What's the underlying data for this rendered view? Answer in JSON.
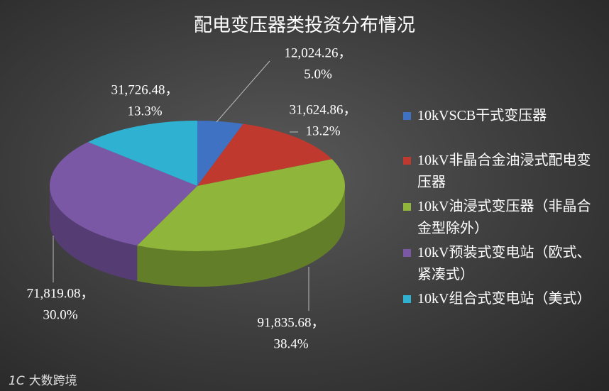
{
  "chart_data": {
    "type": "pie3d",
    "title": "配电变压器类投资分布情况",
    "categories": [
      "10kVSCB干式变压器",
      "10kV非晶合金油浸式配电变压器",
      "10kV油浸式变压器（非晶合金型除外）",
      "10kV预装式变电站（欧式、紧凑式）",
      "10kV组合式变电站（美式）"
    ],
    "values": [
      12024.26,
      31624.86,
      91835.68,
      71819.08,
      31726.48
    ],
    "value_labels": [
      "12,024.26，",
      "31,624.86，",
      "91,835.68，",
      "71,819.08，",
      "31,726.48，"
    ],
    "percents": [
      5.0,
      13.2,
      38.4,
      30.0,
      13.3
    ],
    "percent_labels": [
      "5.0%",
      "13.2%",
      "38.4%",
      "30.0%",
      "13.3%"
    ],
    "colors": [
      "#3f72c2",
      "#c0392f",
      "#8fb53a",
      "#7a58a6",
      "#2fb2d2"
    ],
    "legend": "right"
  },
  "watermark": "大数跨境"
}
